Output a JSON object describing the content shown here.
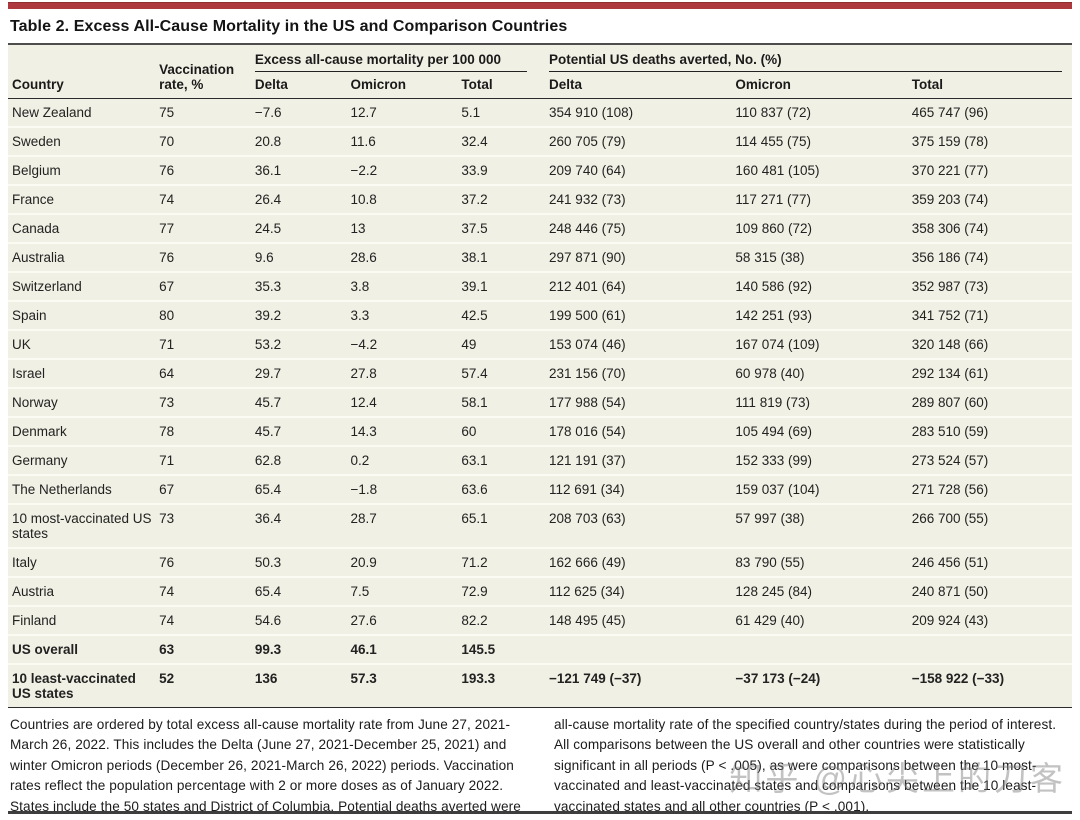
{
  "page": {
    "title": "Table 2. Excess All-Cause Mortality in the US and Comparison Countries",
    "accent_color": "#ad393e",
    "table_background": "#f1f0e4"
  },
  "table": {
    "col_headers": {
      "country": "Country",
      "vaccination_rate": "Vaccination rate, %",
      "group1": "Excess all-cause mortality per 100 000",
      "group2": "Potential US deaths averted, No. (%)",
      "sub1_delta": "Delta",
      "sub1_omicron": "Omicron",
      "sub1_total": "Total",
      "sub2_delta": "Delta",
      "sub2_omicron": "Omicron",
      "sub2_total": "Total"
    },
    "rows": [
      {
        "country": "New Zealand",
        "vaccination_rate": "75",
        "delta": "−7.6",
        "omicron": "12.7",
        "total": "5.1",
        "averted_delta": "354 910 (108)",
        "averted_omicron": "110 837 (72)",
        "averted_total": "465 747 (96)",
        "bold": false
      },
      {
        "country": "Sweden",
        "vaccination_rate": "70",
        "delta": "20.8",
        "omicron": "11.6",
        "total": "32.4",
        "averted_delta": "260 705 (79)",
        "averted_omicron": "114 455 (75)",
        "averted_total": "375 159 (78)",
        "bold": false
      },
      {
        "country": "Belgium",
        "vaccination_rate": "76",
        "delta": "36.1",
        "omicron": "−2.2",
        "total": "33.9",
        "averted_delta": "209 740 (64)",
        "averted_omicron": "160 481 (105)",
        "averted_total": "370 221 (77)",
        "bold": false
      },
      {
        "country": "France",
        "vaccination_rate": "74",
        "delta": "26.4",
        "omicron": "10.8",
        "total": "37.2",
        "averted_delta": "241 932 (73)",
        "averted_omicron": "117 271 (77)",
        "averted_total": "359 203 (74)",
        "bold": false
      },
      {
        "country": "Canada",
        "vaccination_rate": "77",
        "delta": "24.5",
        "omicron": "13",
        "total": "37.5",
        "averted_delta": "248 446 (75)",
        "averted_omicron": "109 860 (72)",
        "averted_total": "358 306 (74)",
        "bold": false
      },
      {
        "country": "Australia",
        "vaccination_rate": "76",
        "delta": "9.6",
        "omicron": "28.6",
        "total": "38.1",
        "averted_delta": "297 871 (90)",
        "averted_omicron": "58 315 (38)",
        "averted_total": "356 186 (74)",
        "bold": false
      },
      {
        "country": "Switzerland",
        "vaccination_rate": "67",
        "delta": "35.3",
        "omicron": "3.8",
        "total": "39.1",
        "averted_delta": "212 401 (64)",
        "averted_omicron": "140 586 (92)",
        "averted_total": "352 987 (73)",
        "bold": false
      },
      {
        "country": "Spain",
        "vaccination_rate": "80",
        "delta": "39.2",
        "omicron": "3.3",
        "total": "42.5",
        "averted_delta": "199 500 (61)",
        "averted_omicron": "142 251 (93)",
        "averted_total": "341 752 (71)",
        "bold": false
      },
      {
        "country": "UK",
        "vaccination_rate": "71",
        "delta": "53.2",
        "omicron": "−4.2",
        "total": "49",
        "averted_delta": "153 074 (46)",
        "averted_omicron": "167 074 (109)",
        "averted_total": "320 148 (66)",
        "bold": false
      },
      {
        "country": "Israel",
        "vaccination_rate": "64",
        "delta": "29.7",
        "omicron": "27.8",
        "total": "57.4",
        "averted_delta": "231 156 (70)",
        "averted_omicron": "60 978 (40)",
        "averted_total": "292 134 (61)",
        "bold": false
      },
      {
        "country": "Norway",
        "vaccination_rate": "73",
        "delta": "45.7",
        "omicron": "12.4",
        "total": "58.1",
        "averted_delta": "177 988 (54)",
        "averted_omicron": "111 819 (73)",
        "averted_total": "289 807 (60)",
        "bold": false
      },
      {
        "country": "Denmark",
        "vaccination_rate": "78",
        "delta": "45.7",
        "omicron": "14.3",
        "total": "60",
        "averted_delta": "178 016 (54)",
        "averted_omicron": "105 494 (69)",
        "averted_total": "283 510 (59)",
        "bold": false
      },
      {
        "country": "Germany",
        "vaccination_rate": "71",
        "delta": "62.8",
        "omicron": "0.2",
        "total": "63.1",
        "averted_delta": "121 191 (37)",
        "averted_omicron": "152 333 (99)",
        "averted_total": "273 524 (57)",
        "bold": false
      },
      {
        "country": "The Netherlands",
        "vaccination_rate": "67",
        "delta": "65.4",
        "omicron": "−1.8",
        "total": "63.6",
        "averted_delta": "112 691 (34)",
        "averted_omicron": "159 037 (104)",
        "averted_total": "271 728 (56)",
        "bold": false
      },
      {
        "country": "10 most-vaccinated US states",
        "vaccination_rate": "73",
        "delta": "36.4",
        "omicron": "28.7",
        "total": "65.1",
        "averted_delta": "208 703 (63)",
        "averted_omicron": "57 997 (38)",
        "averted_total": "266 700 (55)",
        "bold": false
      },
      {
        "country": "Italy",
        "vaccination_rate": "76",
        "delta": "50.3",
        "omicron": "20.9",
        "total": "71.2",
        "averted_delta": "162 666 (49)",
        "averted_omicron": "83 790 (55)",
        "averted_total": "246 456 (51)",
        "bold": false
      },
      {
        "country": "Austria",
        "vaccination_rate": "74",
        "delta": "65.4",
        "omicron": "7.5",
        "total": "72.9",
        "averted_delta": "112 625 (34)",
        "averted_omicron": "128 245 (84)",
        "averted_total": "240 871 (50)",
        "bold": false
      },
      {
        "country": "Finland",
        "vaccination_rate": "74",
        "delta": "54.6",
        "omicron": "27.6",
        "total": "82.2",
        "averted_delta": "148 495 (45)",
        "averted_omicron": "61 429 (40)",
        "averted_total": "209 924 (43)",
        "bold": false
      },
      {
        "country": "US overall",
        "vaccination_rate": "63",
        "delta": "99.3",
        "omicron": "46.1",
        "total": "145.5",
        "averted_delta": "",
        "averted_omicron": "",
        "averted_total": "",
        "bold": true
      },
      {
        "country": "10 least-vaccinated US states",
        "vaccination_rate": "52",
        "delta": "136",
        "omicron": "57.3",
        "total": "193.3",
        "averted_delta": "−121 749 (−37)",
        "averted_omicron": "−37 173 (−24)",
        "averted_total": "−158 922 (−33)",
        "bold": true
      }
    ]
  },
  "footnotes": {
    "left": "Countries are ordered by total excess all-cause mortality rate from June 27, 2021-March 26, 2022. This includes the Delta (June 27, 2021-December 25, 2021) and winter Omicron periods (December 26, 2021-March 26, 2022) periods. Vaccination rates reflect the population percentage with 2 or more doses as of January 2022. States include the 50 states and District of Columbia. Potential deaths averted were calculated assuming that the full US had the",
    "right": "all-cause mortality rate of the specified country/states during the period of interest. All comparisons between the US overall and other countries were statistically significant in all periods (P < .005), as were comparisons between the 10 most-vaccinated and least-vaccinated states and comparisons between the 10 least-vaccinated states and all other countries (P < .001)."
  },
  "watermark": "知乎 @心尖上的刀客"
}
